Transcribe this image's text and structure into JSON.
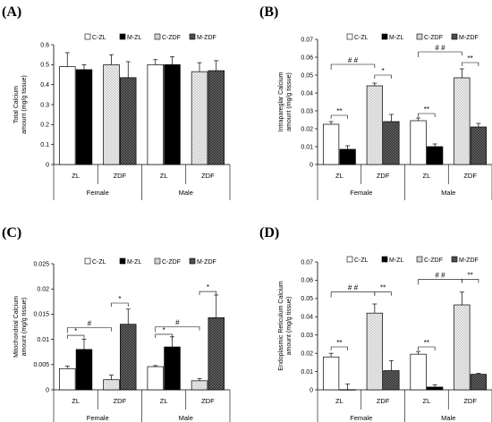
{
  "chart_data": [
    {
      "type": "bar",
      "panel": "(A)",
      "ylabel": "Total Calcium amount (mg/g tissue)",
      "ylim": [
        0,
        0.6
      ],
      "yticks": [
        "0",
        "0.1",
        "0.2",
        "0.3",
        "0.4",
        "0.5",
        "0.6"
      ],
      "groups": [
        "Female",
        "Male"
      ],
      "categories": [
        "ZL",
        "ZDF"
      ],
      "legend": [
        "C-ZL",
        "M-ZL",
        "C-ZDF",
        "M-ZDF"
      ],
      "bars": [
        {
          "series": "C-ZL",
          "group": "Female",
          "category": "ZL",
          "value": 0.49,
          "error": 0.07
        },
        {
          "series": "M-ZL",
          "group": "Female",
          "category": "ZL",
          "value": 0.475,
          "error": 0.025
        },
        {
          "series": "C-ZDF",
          "group": "Female",
          "category": "ZDF",
          "value": 0.5,
          "error": 0.05
        },
        {
          "series": "M-ZDF",
          "group": "Female",
          "category": "ZDF",
          "value": 0.435,
          "error": 0.08
        },
        {
          "series": "C-ZL",
          "group": "Male",
          "category": "ZL",
          "value": 0.5,
          "error": 0.025
        },
        {
          "series": "M-ZL",
          "group": "Male",
          "category": "ZL",
          "value": 0.5,
          "error": 0.04
        },
        {
          "series": "C-ZDF",
          "group": "Male",
          "category": "ZDF",
          "value": 0.465,
          "error": 0.045
        },
        {
          "series": "M-ZDF",
          "group": "Male",
          "category": "ZDF",
          "value": 0.47,
          "error": 0.05
        }
      ],
      "annotations": []
    },
    {
      "type": "bar",
      "panel": "(B)",
      "ylabel": "Intrapareglar Calcium amount (mg/g tissue)",
      "ylim": [
        0,
        0.07
      ],
      "yticks": [
        "0",
        "0.01",
        "0.02",
        "0.03",
        "0.04",
        "0.05",
        "0.06",
        "0.07"
      ],
      "groups": [
        "Female",
        "Male"
      ],
      "categories": [
        "ZL",
        "ZDF"
      ],
      "legend": [
        "C-ZL",
        "M-ZL",
        "C-ZDF",
        "M-ZDF"
      ],
      "bars": [
        {
          "series": "C-ZL",
          "group": "Female",
          "category": "ZL",
          "value": 0.0225,
          "error": 0.0015
        },
        {
          "series": "M-ZL",
          "group": "Female",
          "category": "ZL",
          "value": 0.0085,
          "error": 0.002
        },
        {
          "series": "C-ZDF",
          "group": "Female",
          "category": "ZDF",
          "value": 0.044,
          "error": 0.0015
        },
        {
          "series": "M-ZDF",
          "group": "Female",
          "category": "ZDF",
          "value": 0.024,
          "error": 0.004
        },
        {
          "series": "C-ZL",
          "group": "Male",
          "category": "ZL",
          "value": 0.0245,
          "error": 0.0015
        },
        {
          "series": "M-ZL",
          "group": "Male",
          "category": "ZL",
          "value": 0.01,
          "error": 0.0015
        },
        {
          "series": "C-ZDF",
          "group": "Male",
          "category": "ZDF",
          "value": 0.0485,
          "error": 0.005
        },
        {
          "series": "M-ZDF",
          "group": "Male",
          "category": "ZDF",
          "value": 0.021,
          "error": 0.002
        }
      ],
      "annotations": [
        {
          "text": "**",
          "group": "Female",
          "kind": "within",
          "category": "ZL",
          "y": 0.0275
        },
        {
          "text": "*",
          "group": "Female",
          "kind": "within",
          "category": "ZDF",
          "y": 0.05
        },
        {
          "text": "# #",
          "group": "Female",
          "kind": "across",
          "y": 0.056
        },
        {
          "text": "**",
          "group": "Male",
          "kind": "within",
          "category": "ZL",
          "y": 0.0285
        },
        {
          "text": "**",
          "group": "Male",
          "kind": "within",
          "category": "ZDF",
          "y": 0.057
        },
        {
          "text": "# #",
          "group": "Male",
          "kind": "across",
          "y": 0.063
        }
      ]
    },
    {
      "type": "bar",
      "panel": "(C)",
      "ylabel": "Mitochondrial Calcium amount (mg/g tissue)",
      "ylim": [
        0,
        0.025
      ],
      "yticks": [
        "0",
        "0.005",
        "0.01",
        "0.015",
        "0.02",
        "0.025"
      ],
      "groups": [
        "Female",
        "Male"
      ],
      "categories": [
        "ZL",
        "ZDF"
      ],
      "legend": [
        "C-ZL",
        "M-ZL",
        "C-ZDF",
        "M-ZDF"
      ],
      "bars": [
        {
          "series": "C-ZL",
          "group": "Female",
          "category": "ZL",
          "value": 0.0042,
          "error": 0.0005
        },
        {
          "series": "M-ZL",
          "group": "Female",
          "category": "ZL",
          "value": 0.008,
          "error": 0.002
        },
        {
          "series": "C-ZDF",
          "group": "Female",
          "category": "ZDF",
          "value": 0.002,
          "error": 0.0009
        },
        {
          "series": "M-ZDF",
          "group": "Female",
          "category": "ZDF",
          "value": 0.013,
          "error": 0.003
        },
        {
          "series": "C-ZL",
          "group": "Male",
          "category": "ZL",
          "value": 0.0046,
          "error": 0.0002
        },
        {
          "series": "M-ZL",
          "group": "Male",
          "category": "ZL",
          "value": 0.0085,
          "error": 0.002
        },
        {
          "series": "C-ZDF",
          "group": "Male",
          "category": "ZDF",
          "value": 0.0018,
          "error": 0.0004
        },
        {
          "series": "M-ZDF",
          "group": "Male",
          "category": "ZDF",
          "value": 0.0143,
          "error": 0.0045
        }
      ],
      "annotations": [
        {
          "text": "*",
          "group": "Female",
          "kind": "within",
          "category": "ZL",
          "y": 0.0108
        },
        {
          "text": "*",
          "group": "Female",
          "kind": "within",
          "category": "ZDF",
          "y": 0.0172
        },
        {
          "text": "#",
          "group": "Female",
          "kind": "across",
          "y": 0.0123
        },
        {
          "text": "*",
          "group": "Male",
          "kind": "within",
          "category": "ZL",
          "y": 0.011
        },
        {
          "text": "*",
          "group": "Male",
          "kind": "within",
          "category": "ZDF",
          "y": 0.0195
        },
        {
          "text": "#",
          "group": "Male",
          "kind": "across",
          "y": 0.0125
        }
      ]
    },
    {
      "type": "bar",
      "panel": "(D)",
      "ylabel": "Endoplasmic Reticulum Calcium amount (mg/g tissue)",
      "ylim": [
        0,
        0.07
      ],
      "yticks": [
        "0",
        "0.01",
        "0.02",
        "0.03",
        "0.04",
        "0.05",
        "0.06",
        "0.07"
      ],
      "groups": [
        "Female",
        "Male"
      ],
      "categories": [
        "ZL",
        "ZDF"
      ],
      "legend": [
        "C-ZL",
        "M-ZL",
        "C-ZDF",
        "M-ZDF"
      ],
      "bars": [
        {
          "series": "C-ZL",
          "group": "Female",
          "category": "ZL",
          "value": 0.018,
          "error": 0.002
        },
        {
          "series": "M-ZL",
          "group": "Female",
          "category": "ZL",
          "value": 0.0001,
          "error": 0.003
        },
        {
          "series": "C-ZDF",
          "group": "Female",
          "category": "ZDF",
          "value": 0.042,
          "error": 0.005
        },
        {
          "series": "M-ZDF",
          "group": "Female",
          "category": "ZDF",
          "value": 0.0105,
          "error": 0.0055
        },
        {
          "series": "C-ZL",
          "group": "Male",
          "category": "ZL",
          "value": 0.0195,
          "error": 0.0015
        },
        {
          "series": "M-ZL",
          "group": "Male",
          "category": "ZL",
          "value": 0.0015,
          "error": 0.0012
        },
        {
          "series": "C-ZDF",
          "group": "Male",
          "category": "ZDF",
          "value": 0.0465,
          "error": 0.007
        },
        {
          "series": "M-ZDF",
          "group": "Male",
          "category": "ZDF",
          "value": 0.0085,
          "error": 0.0005
        }
      ],
      "annotations": [
        {
          "text": "**",
          "group": "Female",
          "kind": "within",
          "category": "ZL",
          "y": 0.0235
        },
        {
          "text": "**",
          "group": "Female",
          "kind": "within",
          "category": "ZDF",
          "y": 0.0535
        },
        {
          "text": "# #",
          "group": "Female",
          "kind": "across",
          "y": 0.0535
        },
        {
          "text": "**",
          "group": "Male",
          "kind": "within",
          "category": "ZL",
          "y": 0.0235
        },
        {
          "text": "**",
          "group": "Male",
          "kind": "within",
          "category": "ZDF",
          "y": 0.0605
        },
        {
          "text": "# #",
          "group": "Male",
          "kind": "across",
          "y": 0.0605
        }
      ]
    }
  ],
  "colors": {
    "C-ZL": "#ffffff",
    "M-ZL": "#000000",
    "C-ZDF": "#d9d9d9",
    "M-ZDF": "#4d4d4d",
    "axis": "#000000",
    "error": "#000000"
  }
}
